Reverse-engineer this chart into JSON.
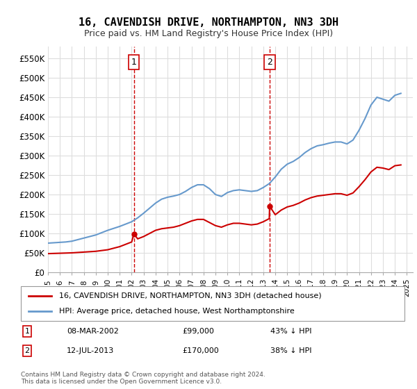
{
  "title": "16, CAVENDISH DRIVE, NORTHAMPTON, NN3 3DH",
  "subtitle": "Price paid vs. HM Land Registry's House Price Index (HPI)",
  "legend_label_red": "16, CAVENDISH DRIVE, NORTHAMPTON, NN3 3DH (detached house)",
  "legend_label_blue": "HPI: Average price, detached house, West Northamptonshire",
  "annotation1_label": "1",
  "annotation1_date": "08-MAR-2002",
  "annotation1_price": "£99,000",
  "annotation1_hpi": "43% ↓ HPI",
  "annotation2_label": "2",
  "annotation2_date": "12-JUL-2013",
  "annotation2_price": "£170,000",
  "annotation2_hpi": "38% ↓ HPI",
  "footer": "Contains HM Land Registry data © Crown copyright and database right 2024.\nThis data is licensed under the Open Government Licence v3.0.",
  "red_color": "#cc0000",
  "blue_color": "#6699cc",
  "vline_color": "#cc0000",
  "grid_color": "#dddddd",
  "bg_color": "#ffffff",
  "ylim": [
    0,
    580000
  ],
  "yticks": [
    0,
    50000,
    100000,
    150000,
    200000,
    250000,
    300000,
    350000,
    400000,
    450000,
    500000,
    550000
  ],
  "ytick_labels": [
    "£0",
    "£50K",
    "£100K",
    "£150K",
    "£200K",
    "£250K",
    "£300K",
    "£350K",
    "£400K",
    "£450K",
    "£500K",
    "£550K"
  ],
  "xlim_start": 1995.0,
  "xlim_end": 2025.5,
  "vline1_x": 2002.18,
  "vline2_x": 2013.53,
  "marker1_x": 2002.18,
  "marker1_y": 99000,
  "marker2_x": 2013.53,
  "marker2_y": 170000,
  "hpi_x": [
    1995.0,
    1995.5,
    1996.0,
    1996.5,
    1997.0,
    1997.5,
    1998.0,
    1998.5,
    1999.0,
    1999.5,
    2000.0,
    2000.5,
    2001.0,
    2001.5,
    2002.0,
    2002.5,
    2003.0,
    2003.5,
    2004.0,
    2004.5,
    2005.0,
    2005.5,
    2006.0,
    2006.5,
    2007.0,
    2007.5,
    2008.0,
    2008.5,
    2009.0,
    2009.5,
    2010.0,
    2010.5,
    2011.0,
    2011.5,
    2012.0,
    2012.5,
    2013.0,
    2013.5,
    2014.0,
    2014.5,
    2015.0,
    2015.5,
    2016.0,
    2016.5,
    2017.0,
    2017.5,
    2018.0,
    2018.5,
    2019.0,
    2019.5,
    2020.0,
    2020.5,
    2021.0,
    2021.5,
    2022.0,
    2022.5,
    2023.0,
    2023.5,
    2024.0,
    2024.5
  ],
  "hpi_y": [
    75000,
    76000,
    77000,
    78000,
    80000,
    84000,
    88000,
    92000,
    96000,
    102000,
    108000,
    113000,
    118000,
    124000,
    130000,
    140000,
    152000,
    165000,
    178000,
    188000,
    193000,
    196000,
    200000,
    208000,
    218000,
    225000,
    225000,
    215000,
    200000,
    195000,
    205000,
    210000,
    212000,
    210000,
    208000,
    210000,
    218000,
    228000,
    245000,
    265000,
    278000,
    285000,
    295000,
    308000,
    318000,
    325000,
    328000,
    332000,
    335000,
    335000,
    330000,
    340000,
    365000,
    395000,
    430000,
    450000,
    445000,
    440000,
    455000,
    460000
  ],
  "red_x": [
    1995.0,
    1995.5,
    1996.0,
    1996.5,
    1997.0,
    1997.5,
    1998.0,
    1998.5,
    1999.0,
    1999.5,
    2000.0,
    2000.5,
    2001.0,
    2001.5,
    2002.0,
    2002.18,
    2002.5,
    2003.0,
    2003.5,
    2004.0,
    2004.5,
    2005.0,
    2005.5,
    2006.0,
    2006.5,
    2007.0,
    2007.5,
    2008.0,
    2008.5,
    2009.0,
    2009.5,
    2010.0,
    2010.5,
    2011.0,
    2011.5,
    2012.0,
    2012.5,
    2013.0,
    2013.5,
    2013.53,
    2014.0,
    2014.5,
    2015.0,
    2015.5,
    2016.0,
    2016.5,
    2017.0,
    2017.5,
    2018.0,
    2018.5,
    2019.0,
    2019.5,
    2020.0,
    2020.5,
    2021.0,
    2021.5,
    2022.0,
    2022.5,
    2023.0,
    2023.5,
    2024.0,
    2024.5
  ],
  "red_y": [
    48000,
    48500,
    49000,
    49500,
    50000,
    51000,
    52000,
    53000,
    54000,
    56000,
    58000,
    62000,
    66000,
    72000,
    78000,
    99000,
    86000,
    92000,
    100000,
    108000,
    112000,
    114000,
    116000,
    120000,
    126000,
    132000,
    136000,
    136000,
    128000,
    120000,
    116000,
    122000,
    126000,
    126000,
    124000,
    122000,
    124000,
    130000,
    138000,
    170000,
    148000,
    160000,
    168000,
    172000,
    178000,
    186000,
    192000,
    196000,
    198000,
    200000,
    202000,
    202000,
    198000,
    204000,
    220000,
    238000,
    258000,
    270000,
    268000,
    264000,
    274000,
    276000
  ]
}
